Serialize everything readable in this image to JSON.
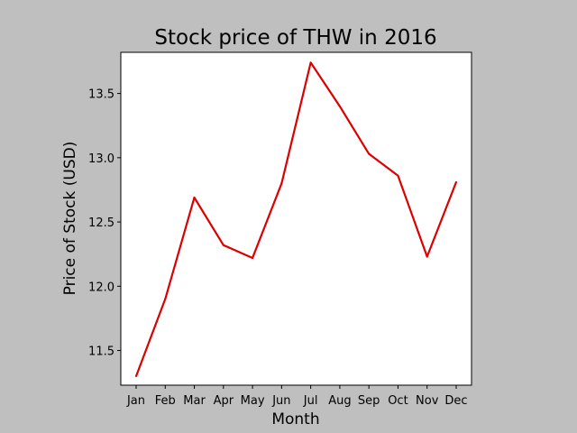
{
  "chart_data": {
    "type": "line",
    "title": "Stock price of THW in 2016",
    "xlabel": "Month",
    "ylabel": "Price of Stock (USD)",
    "categories": [
      "Jan",
      "Feb",
      "Mar",
      "Apr",
      "May",
      "Jun",
      "Jul",
      "Aug",
      "Sep",
      "Oct",
      "Nov",
      "Dec"
    ],
    "series": [
      {
        "values": [
          11.3,
          11.9,
          12.69,
          12.32,
          12.22,
          12.8,
          13.74,
          13.4,
          13.03,
          12.86,
          12.23,
          12.81
        ],
        "color": "#dd0000"
      }
    ],
    "yticks": [
      11.5,
      12.0,
      12.5,
      13.0,
      13.5
    ],
    "ytick_labels": [
      "11.5",
      "12.0",
      "12.5",
      "13.0",
      "13.5"
    ],
    "ylim": [
      11.23,
      13.82
    ],
    "grid": false,
    "background": "#bfbfbf",
    "plot_background": "#ffffff"
  }
}
